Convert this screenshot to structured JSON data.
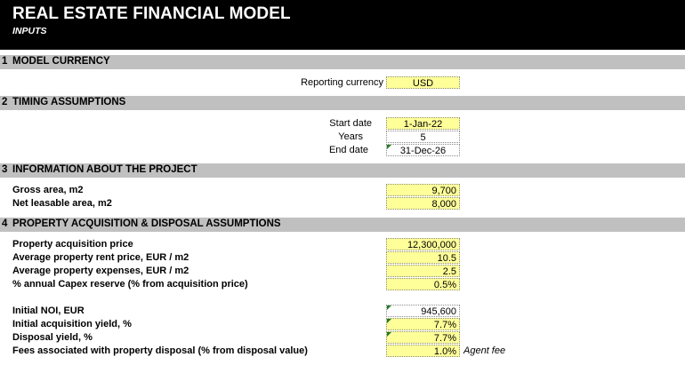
{
  "header": {
    "title": "REAL ESTATE FINANCIAL MODEL",
    "subtitle": "INPUTS"
  },
  "sections": [
    {
      "num": "1",
      "title": "MODEL CURRENCY"
    },
    {
      "num": "2",
      "title": "TIMING ASSUMPTIONS"
    },
    {
      "num": "3",
      "title": "INFORMATION ABOUT THE PROJECT"
    },
    {
      "num": "4",
      "title": "PROPERTY ACQUISITION & DISPOSAL ASSUMPTIONS"
    }
  ],
  "currency": {
    "label": "Reporting currency",
    "value": "USD"
  },
  "timing": {
    "start_label": "Start date",
    "start_value": "1-Jan-22",
    "years_label": "Years",
    "years_value": "5",
    "end_label": "End date",
    "end_value": "31-Dec-26"
  },
  "project": {
    "gross_label": "Gross area, m2",
    "gross_value": "9,700",
    "net_label": "Net leasable area, m2",
    "net_value": "8,000"
  },
  "acquisition": {
    "price_label": "Property acquisition price",
    "price_value": "12,300,000",
    "rent_label": "Average property rent price, EUR / m2",
    "rent_value": "10.5",
    "expenses_label": "Average property expenses, EUR / m2",
    "expenses_value": "2.5",
    "capex_label": "% annual Capex reserve (% from acquisition price)",
    "capex_value": "0.5%",
    "noi_label": "Initial NOI, EUR",
    "noi_value": "945,600",
    "yield_label": "Initial acquisition yield, %",
    "yield_value": "7.7%",
    "disposal_yield_label": "Disposal yield, %",
    "disposal_yield_value": "7.7%",
    "fees_label": "Fees associated with property disposal (% from disposal value)",
    "fees_value": "1.0%",
    "fees_note": "Agent fee"
  }
}
